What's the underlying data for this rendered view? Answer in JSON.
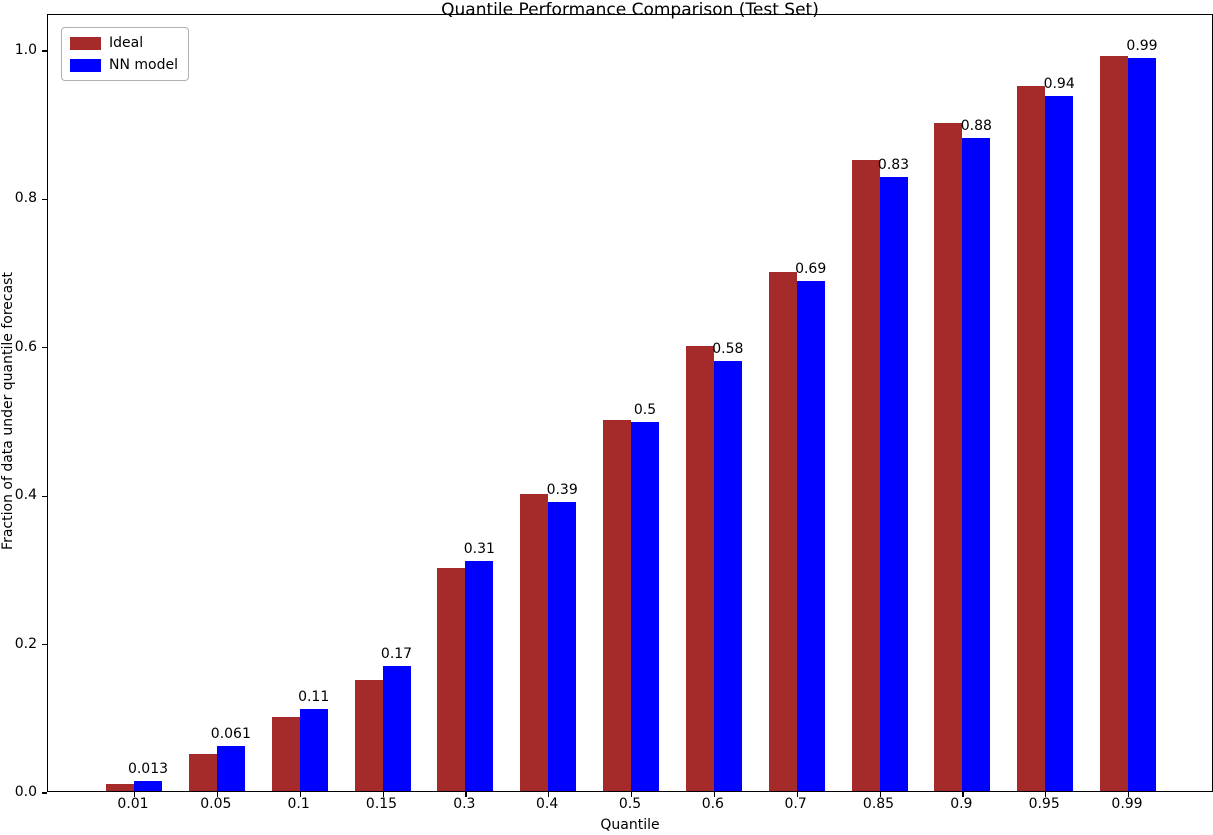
{
  "chart_data": {
    "type": "bar",
    "title": "Quantile Performance Comparison (Test Set)",
    "xlabel": "Quantile",
    "ylabel": "Fraction of data under quantile forecast",
    "categories": [
      "0.01",
      "0.05",
      "0.1",
      "0.15",
      "0.3",
      "0.4",
      "0.5",
      "0.6",
      "0.7",
      "0.85",
      "0.9",
      "0.95",
      "0.99"
    ],
    "series": [
      {
        "name": "Ideal",
        "color": "#a52a2a",
        "values": [
          0.01,
          0.05,
          0.1,
          0.15,
          0.3,
          0.4,
          0.5,
          0.6,
          0.7,
          0.85,
          0.9,
          0.95,
          0.99
        ]
      },
      {
        "name": "NN model",
        "color": "#0000ff",
        "values": [
          0.013,
          0.061,
          0.111,
          0.168,
          0.31,
          0.39,
          0.497,
          0.58,
          0.688,
          0.828,
          0.88,
          0.937,
          0.988
        ]
      }
    ],
    "bar_labels": [
      "0.013",
      "0.061",
      "0.11",
      "0.17",
      "0.31",
      "0.39",
      "0.5",
      "0.58",
      "0.69",
      "0.83",
      "0.88",
      "0.94",
      "0.99"
    ],
    "y_ticks": [
      "0.0",
      "0.2",
      "0.4",
      "0.6",
      "0.8",
      "1.0"
    ],
    "y_tick_values": [
      0.0,
      0.2,
      0.4,
      0.6,
      0.8,
      1.0
    ],
    "ylim": [
      0,
      1.048
    ],
    "grid": false,
    "legend_position": "upper left"
  }
}
